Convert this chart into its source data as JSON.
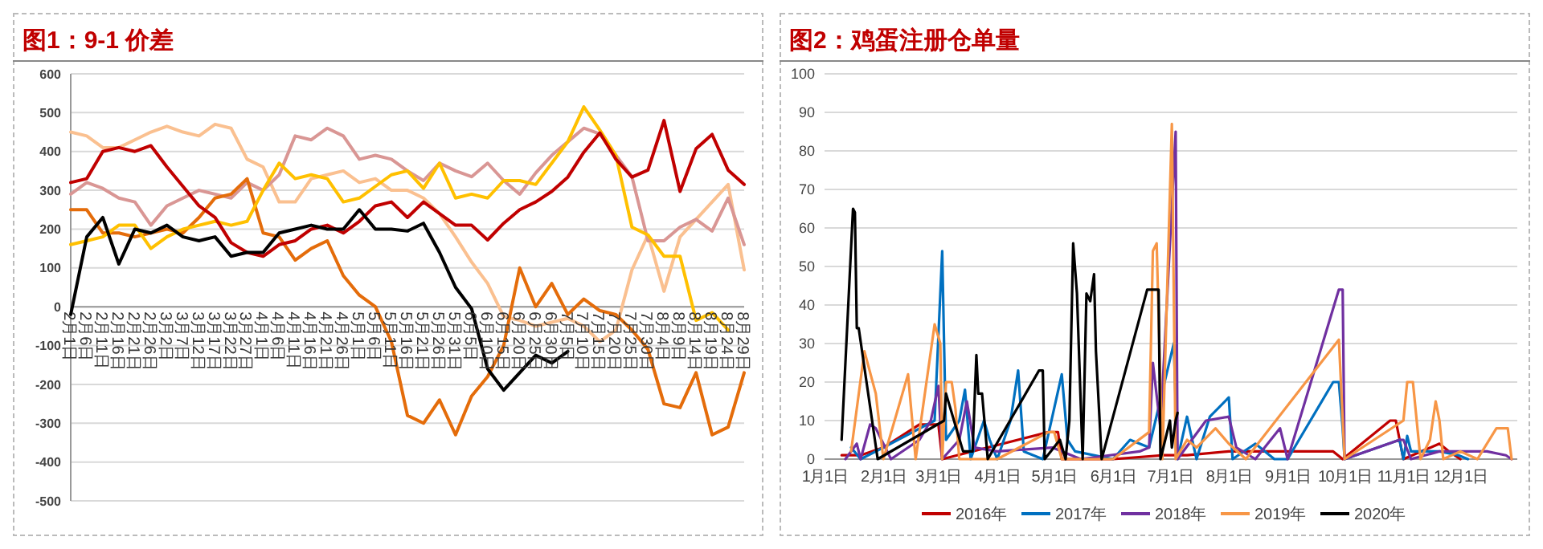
{
  "chart_data": [
    {
      "type": "line",
      "title": "图1：9-1 价差",
      "grid": "y",
      "ylim": [
        -500,
        600
      ],
      "yticks": [
        -500,
        -400,
        -300,
        -200,
        -100,
        0,
        100,
        200,
        300,
        400,
        500,
        600
      ],
      "categories": [
        "2月1日",
        "2月6日",
        "2月11日",
        "2月16日",
        "2月21日",
        "2月26日",
        "3月2日",
        "3月7日",
        "3月12日",
        "3月17日",
        "3月22日",
        "3月27日",
        "4月1日",
        "4月6日",
        "4月11日",
        "4月16日",
        "4月21日",
        "4月26日",
        "5月1日",
        "5月6日",
        "5月11日",
        "5月16日",
        "5月21日",
        "5月26日",
        "5月31日",
        "6月5日",
        "6月10日",
        "6月15日",
        "6月20日",
        "6月25日",
        "6月30日",
        "7月5日",
        "7月10日",
        "7月15日",
        "7月20日",
        "7月25日",
        "7月30日",
        "8月4日",
        "8月9日",
        "8月14日",
        "8月19日",
        "8月24日",
        "8月29日"
      ],
      "series": [
        {
          "color": "#fac090",
          "values": [
            450,
            440,
            410,
            410,
            430,
            450,
            465,
            450,
            440,
            470,
            460,
            380,
            360,
            270,
            270,
            330,
            340,
            350,
            320,
            330,
            300,
            300,
            280,
            240,
            180,
            115,
            60,
            -25,
            -35,
            -50,
            -40,
            -30,
            -50,
            -90,
            -60,
            95,
            185,
            40,
            180,
            225,
            270,
            315,
            95
          ]
        },
        {
          "color": "#d99694",
          "values": [
            290,
            320,
            305,
            280,
            270,
            210,
            260,
            280,
            300,
            290,
            280,
            320,
            300,
            340,
            440,
            430,
            460,
            440,
            380,
            390,
            380,
            350,
            325,
            370,
            350,
            335,
            370,
            325,
            290,
            345,
            390,
            425,
            460,
            445,
            390,
            335,
            170,
            170,
            205,
            225,
            195,
            280,
            160
          ]
        },
        {
          "color": "#e46c0a",
          "values": [
            250,
            250,
            190,
            190,
            180,
            190,
            200,
            190,
            230,
            280,
            290,
            330,
            190,
            180,
            120,
            150,
            170,
            80,
            30,
            0,
            -90,
            -280,
            -300,
            -240,
            -330,
            -230,
            -180,
            -100,
            100,
            0,
            60,
            -20,
            20,
            -10,
            -20,
            -60,
            -110,
            -250,
            -260,
            -170,
            -330,
            -310,
            -170
          ]
        },
        {
          "color": "#ffc000",
          "values": [
            160,
            170,
            180,
            210,
            210,
            150,
            180,
            200,
            210,
            220,
            210,
            220,
            300,
            370,
            330,
            340,
            330,
            270,
            280,
            310,
            340,
            350,
            305,
            370,
            280,
            290,
            280,
            325,
            325,
            315,
            370,
            425,
            515,
            455,
            390,
            205,
            185,
            130,
            130,
            -35,
            -15,
            -60,
            null
          ]
        },
        {
          "color": "#c00000",
          "values": [
            320,
            330,
            400,
            410,
            400,
            415,
            360,
            310,
            260,
            230,
            165,
            140,
            130,
            160,
            170,
            200,
            210,
            190,
            220,
            260,
            270,
            230,
            270,
            240,
            210,
            210,
            172,
            215,
            250,
            270,
            297,
            334,
            398,
            448,
            380,
            334,
            352,
            480,
            297,
            407,
            444,
            352,
            315
          ]
        },
        {
          "color": "#000000",
          "values": [
            -20,
            180,
            230,
            110,
            200,
            190,
            210,
            180,
            170,
            180,
            130,
            140,
            140,
            190,
            200,
            210,
            200,
            200,
            250,
            200,
            200,
            195,
            215,
            140,
            50,
            -5,
            -160,
            -215,
            -170,
            -125,
            -145,
            -115,
            null,
            null,
            null,
            null,
            null,
            null,
            null,
            null,
            null,
            null,
            null
          ]
        }
      ]
    },
    {
      "type": "line",
      "title": "图2：鸡蛋注册仓单量",
      "grid": "y",
      "legend": "bottom",
      "ylim": [
        0,
        100
      ],
      "yticks": [
        0,
        10,
        20,
        30,
        40,
        50,
        60,
        70,
        80,
        90,
        100
      ],
      "xlim": [
        "--01-01",
        "--12-31"
      ],
      "xticks": [
        {
          "value": "--01-01",
          "label": "1月1日"
        },
        {
          "value": "--02-01",
          "label": "2月1日"
        },
        {
          "value": "--03-01",
          "label": "3月1日"
        },
        {
          "value": "--04-01",
          "label": "4月1日"
        },
        {
          "value": "--05-01",
          "label": "5月1日"
        },
        {
          "value": "--06-01",
          "label": "6月1日"
        },
        {
          "value": "--07-01",
          "label": "7月1日"
        },
        {
          "value": "--08-01",
          "label": "8月1日"
        },
        {
          "value": "--09-01",
          "label": "9月1日"
        },
        {
          "value": "--10-01",
          "label": "10月1日"
        },
        {
          "value": "--11-01",
          "label": "11月1日"
        },
        {
          "value": "--12-01",
          "label": "12月1日"
        }
      ],
      "series": [
        {
          "name": "2016年",
          "color": "#c00000",
          "x": [
            "--01-10",
            "--01-20",
            "--02-01",
            "--02-20",
            "--03-01",
            "--03-03",
            "--04-28",
            "--05-03",
            "--05-05",
            "--06-01",
            "--06-28",
            "--07-10",
            "--08-01",
            "--09-01",
            "--09-25",
            "--09-30",
            "--10-25",
            "--10-28",
            "--11-01",
            "--11-20",
            "--11-25",
            "--12-01"
          ],
          "values": [
            1,
            1,
            3,
            9,
            9,
            0,
            7,
            7,
            0,
            0,
            1,
            1,
            2,
            2,
            2,
            0,
            10,
            10,
            0,
            4,
            2,
            0
          ]
        },
        {
          "name": "2017年",
          "color": "#0070c0",
          "x": [
            "--01-15",
            "--01-20",
            "--02-01",
            "--02-28",
            "--03-03",
            "--03-05",
            "--03-12",
            "--03-15",
            "--03-18",
            "--03-25",
            "--03-28",
            "--04-01",
            "--04-08",
            "--04-12",
            "--04-15",
            "--04-25",
            "--05-05",
            "--05-08",
            "--05-12",
            "--06-01",
            "--06-10",
            "--06-20",
            "--07-03",
            "--07-05",
            "--07-10",
            "--07-15",
            "--07-22",
            "--08-01",
            "--08-03",
            "--08-15",
            "--08-25",
            "--09-01",
            "--09-25",
            "--09-28",
            "--09-30",
            "--10-01",
            "--10-30",
            "--11-01",
            "--11-03",
            "--11-05",
            "--11-20",
            "--11-30",
            "--12-05"
          ],
          "values": [
            3,
            0,
            3,
            10,
            54,
            5,
            10,
            18,
            0,
            10,
            5,
            0,
            10,
            23,
            2,
            0,
            22,
            5,
            2,
            0,
            5,
            3,
            30,
            0,
            11,
            0,
            11,
            16,
            0,
            4,
            0,
            0,
            20,
            20,
            8,
            0,
            5,
            0,
            6,
            2,
            2,
            1,
            0
          ]
        },
        {
          "name": "2018年",
          "color": "#7030a0",
          "x": [
            "--01-12",
            "--01-18",
            "--01-20",
            "--01-25",
            "--01-28",
            "--02-05",
            "--02-20",
            "--02-26",
            "--03-01",
            "--03-03",
            "--03-12",
            "--03-16",
            "--03-20",
            "--04-01",
            "--04-30",
            "--05-15",
            "--06-15",
            "--06-20",
            "--06-22",
            "--06-26",
            "--07-04",
            "--07-05",
            "--07-20",
            "--08-01",
            "--08-05",
            "--08-15",
            "--08-28",
            "--09-01",
            "--09-28",
            "--09-30",
            "--10-01",
            "--10-30",
            "--11-01",
            "--11-05",
            "--11-20",
            "--12-15",
            "--12-25",
            "--12-28"
          ],
          "values": [
            0,
            4,
            0,
            9,
            8,
            0,
            5,
            10,
            19,
            0,
            5,
            15,
            3,
            2,
            3,
            0,
            2,
            3,
            25,
            8,
            85,
            0,
            10,
            11,
            3,
            0,
            8,
            0,
            44,
            44,
            0,
            5,
            5,
            0,
            2,
            2,
            1,
            0
          ]
        },
        {
          "name": "2019年",
          "color": "#f79646",
          "x": [
            "--01-15",
            "--01-22",
            "--01-28",
            "--02-01",
            "--02-14",
            "--02-18",
            "--02-28",
            "--03-02",
            "--03-03",
            "--03-05",
            "--03-08",
            "--03-10",
            "--03-12",
            "--04-01",
            "--04-28",
            "--05-01",
            "--05-05",
            "--06-01",
            "--06-20",
            "--06-22",
            "--06-24",
            "--06-27",
            "--07-02",
            "--07-04",
            "--07-10",
            "--07-15",
            "--07-25",
            "--08-01",
            "--08-10",
            "--09-28",
            "--10-01",
            "--11-01",
            "--11-03",
            "--11-06",
            "--11-10",
            "--11-15",
            "--11-18",
            "--11-20",
            "--11-22",
            "--12-01",
            "--12-10",
            "--12-20",
            "--12-26",
            "--12-28"
          ],
          "values": [
            2,
            28,
            17,
            0,
            22,
            0,
            35,
            30,
            0,
            20,
            20,
            13,
            0,
            0,
            7,
            7,
            0,
            0,
            7,
            54,
            56,
            0,
            87,
            0,
            5,
            3,
            8,
            4,
            0,
            31,
            0,
            10,
            20,
            20,
            0,
            5,
            15,
            10,
            0,
            2,
            0,
            8,
            8,
            0
          ]
        },
        {
          "name": "2020年",
          "color": "#000000",
          "x": [
            "--01-10",
            "--01-16",
            "--01-17",
            "--01-18",
            "--01-19",
            "--01-29",
            "--03-04",
            "--03-05",
            "--03-14",
            "--03-19",
            "--03-21",
            "--03-22",
            "--03-24",
            "--03-27",
            "--04-23",
            "--04-25",
            "--04-26",
            "--05-04",
            "--05-07",
            "--05-09",
            "--05-11",
            "--05-13",
            "--05-16",
            "--05-18",
            "--05-20",
            "--05-22",
            "--05-23",
            "--05-26",
            "--06-19",
            "--06-25",
            "--06-26",
            "--07-01",
            "--07-02",
            "--07-04",
            "--07-05"
          ],
          "values": [
            5,
            65,
            64,
            34,
            34,
            0,
            10,
            17,
            2,
            2,
            27,
            17,
            17,
            0,
            23,
            23,
            0,
            5,
            0,
            10,
            56,
            43,
            0,
            43,
            41,
            48,
            28,
            0,
            44,
            44,
            0,
            10,
            3,
            10,
            12
          ]
        }
      ]
    }
  ]
}
